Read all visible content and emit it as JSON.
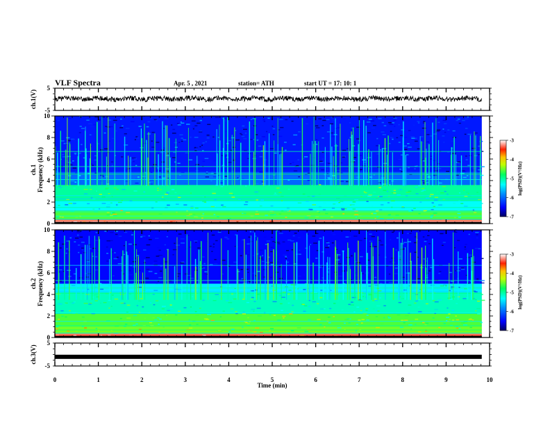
{
  "header": {
    "title": "VLF Spectra",
    "date": "Apr. 5  , 2021",
    "station": "station= ATH",
    "start": "start  UT =   17: 10: 1"
  },
  "chart_data": [
    {
      "type": "line",
      "panel": "ch1-waveform",
      "ylabel": "ch.1(V)",
      "ylim": [
        -5,
        5
      ],
      "yticks": [
        "5",
        "-5"
      ],
      "xlim": [
        0,
        10
      ],
      "description_level_V": 0.3
    },
    {
      "type": "heatmap",
      "panel": "ch1-spectrogram",
      "ylabel": "ch.1\nFrequency (kHz)",
      "ylabel_line1": "ch.1",
      "ylabel_line2": "Frequency (kHz)",
      "ylim": [
        0,
        10
      ],
      "yticks": [
        "0",
        "2",
        "4",
        "6",
        "8",
        "10"
      ],
      "xlim": [
        0,
        10
      ],
      "colorbar": {
        "label": "log(PSD)(V²/Hz)",
        "ticks": [
          "-3",
          "-4",
          "-5",
          "-6",
          "-7"
        ],
        "range": [
          -7,
          -3
        ]
      },
      "bands_kHz": [
        {
          "f0": 0.0,
          "f1": 0.25,
          "v": -3.2
        },
        {
          "f0": 0.25,
          "f1": 1.2,
          "v": -4.6
        },
        {
          "f0": 1.2,
          "f1": 2.1,
          "v": -5.3
        },
        {
          "f0": 2.1,
          "f1": 3.6,
          "v": -5.0
        },
        {
          "f0": 3.6,
          "f1": 4.8,
          "v": -6.0
        },
        {
          "f0": 4.8,
          "f1": 10.0,
          "v": -6.4
        }
      ]
    },
    {
      "type": "heatmap",
      "panel": "ch2-spectrogram",
      "ylabel_line1": "ch.2",
      "ylabel_line2": "Frequency (kHz)",
      "ylim": [
        0,
        10
      ],
      "yticks": [
        "0",
        "2",
        "4",
        "6",
        "8",
        "10"
      ],
      "xlim": [
        0,
        10
      ],
      "colorbar": {
        "label": "log(PSD)(V²/Hz)",
        "ticks": [
          "-3",
          "-4",
          "-5",
          "-6",
          "-7"
        ],
        "range": [
          -7,
          -3
        ]
      },
      "bands_kHz": [
        {
          "f0": 0.0,
          "f1": 0.3,
          "v": -3.4
        },
        {
          "f0": 0.3,
          "f1": 1.0,
          "v": -4.5
        },
        {
          "f0": 1.0,
          "f1": 2.2,
          "v": -4.6
        },
        {
          "f0": 2.2,
          "f1": 4.2,
          "v": -5.1
        },
        {
          "f0": 4.2,
          "f1": 5.0,
          "v": -5.4
        },
        {
          "f0": 5.0,
          "f1": 10.0,
          "v": -6.5
        }
      ]
    },
    {
      "type": "line",
      "panel": "ch3-waveform",
      "ylabel": "ch.3(V)",
      "ylim": [
        -5,
        5
      ],
      "yticks": [
        "5",
        "-5"
      ],
      "xlim": [
        0,
        10
      ],
      "xlabel": "Time (min)",
      "xticks": [
        "0",
        "1",
        "2",
        "3",
        "4",
        "5",
        "6",
        "7",
        "8",
        "9",
        "10"
      ],
      "level_V": -1
    }
  ],
  "colors": {
    "frame": "#000000",
    "colormap": [
      "#000080",
      "#0000ff",
      "#00a0ff",
      "#00ffff",
      "#00ff80",
      "#80ff00",
      "#ffff00",
      "#ff8000",
      "#ff0000",
      "#ffffff"
    ]
  }
}
